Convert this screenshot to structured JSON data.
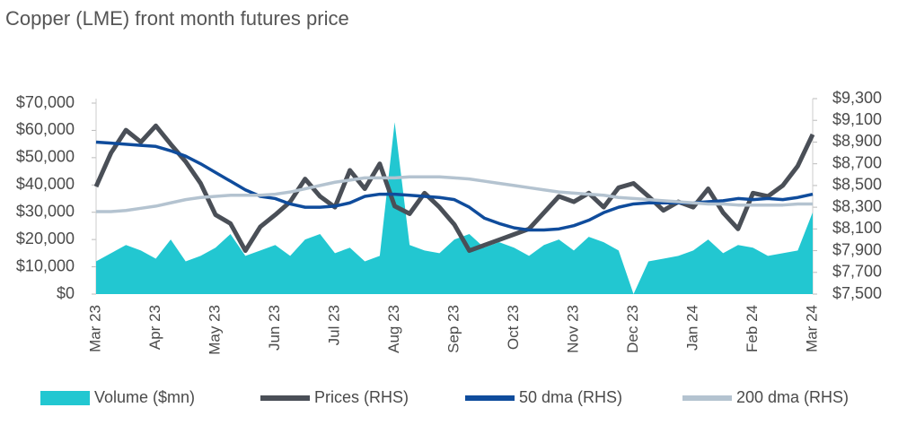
{
  "chart_data": {
    "type": "line",
    "title": "Copper (LME) front month futures price",
    "categories": [
      "Mar 23",
      null,
      null,
      null,
      "Apr 23",
      null,
      null,
      null,
      "May 23",
      null,
      null,
      null,
      "Jun 23",
      null,
      null,
      null,
      "Jul 23",
      null,
      null,
      null,
      "Aug 23",
      null,
      null,
      null,
      "Sep 23",
      null,
      null,
      null,
      "Oct 23",
      null,
      null,
      null,
      "Nov 23",
      null,
      null,
      null,
      "Dec 23",
      null,
      null,
      null,
      "Jan 24",
      null,
      null,
      null,
      "Feb 24",
      null,
      null,
      null,
      "Mar 24"
    ],
    "series": [
      {
        "name": "Volume ($mn)",
        "type": "area",
        "axis": "y",
        "color": "#22c7d1",
        "values": [
          12000,
          15000,
          18000,
          16000,
          13000,
          20000,
          12000,
          14000,
          17000,
          22000,
          14000,
          16000,
          18000,
          14000,
          20000,
          22000,
          15000,
          17000,
          12000,
          14000,
          63000,
          18000,
          16000,
          15000,
          20000,
          22000,
          17000,
          19000,
          17000,
          14000,
          18000,
          20000,
          16000,
          21000,
          19000,
          16000,
          0,
          12000,
          13000,
          14000,
          16000,
          20000,
          15000,
          18000,
          17000,
          14000,
          15000,
          16000,
          30000
        ]
      },
      {
        "name": "Prices (RHS)",
        "type": "line",
        "axis": "y2",
        "color": "#4a4f57",
        "values": [
          8490,
          8800,
          9010,
          8900,
          9050,
          8880,
          8720,
          8520,
          8230,
          8150,
          7900,
          8120,
          8230,
          8350,
          8560,
          8400,
          8300,
          8640,
          8470,
          8700,
          8310,
          8240,
          8430,
          8300,
          8140,
          7900,
          7950,
          8000,
          8050,
          8100,
          8250,
          8400,
          8350,
          8430,
          8300,
          8480,
          8520,
          8400,
          8270,
          8350,
          8300,
          8470,
          8250,
          8100,
          8430,
          8400,
          8500,
          8680,
          8970
        ]
      },
      {
        "name": "50 dma (RHS)",
        "type": "line",
        "axis": "y2",
        "color": "#0f4c9c",
        "values": [
          8900,
          8890,
          8880,
          8870,
          8860,
          8820,
          8770,
          8700,
          8620,
          8540,
          8460,
          8400,
          8380,
          8330,
          8300,
          8300,
          8310,
          8340,
          8400,
          8420,
          8420,
          8410,
          8400,
          8390,
          8370,
          8300,
          8200,
          8150,
          8110,
          8090,
          8090,
          8100,
          8130,
          8180,
          8250,
          8300,
          8330,
          8340,
          8340,
          8340,
          8340,
          8350,
          8360,
          8380,
          8370,
          8380,
          8370,
          8390,
          8420
        ]
      },
      {
        "name": "200 dma (RHS)",
        "type": "line",
        "axis": "y2",
        "color": "#b4c3d0",
        "values": [
          8260,
          8260,
          8270,
          8290,
          8310,
          8340,
          8370,
          8390,
          8400,
          8410,
          8410,
          8410,
          8420,
          8440,
          8470,
          8500,
          8530,
          8550,
          8570,
          8570,
          8570,
          8580,
          8580,
          8580,
          8570,
          8560,
          8540,
          8520,
          8500,
          8480,
          8460,
          8440,
          8430,
          8420,
          8410,
          8390,
          8380,
          8370,
          8360,
          8350,
          8340,
          8330,
          8330,
          8320,
          8320,
          8320,
          8320,
          8330,
          8330
        ]
      }
    ],
    "ylim": [
      0,
      70000
    ],
    "yticks": [
      {
        "value": 0,
        "label": "$0"
      },
      {
        "value": 10000,
        "label": "$10,000"
      },
      {
        "value": 20000,
        "label": "$20,000"
      },
      {
        "value": 30000,
        "label": "$30,000"
      },
      {
        "value": 40000,
        "label": "$40,000"
      },
      {
        "value": 50000,
        "label": "$50,000"
      },
      {
        "value": 60000,
        "label": "$60,000"
      },
      {
        "value": 70000,
        "label": "$70,000"
      }
    ],
    "y2lim": [
      7500,
      9300
    ],
    "y2ticks": [
      {
        "value": 7500,
        "label": "$7,500"
      },
      {
        "value": 7700,
        "label": "$7,700"
      },
      {
        "value": 7900,
        "label": "$7,900"
      },
      {
        "value": 8100,
        "label": "$8,100"
      },
      {
        "value": 8300,
        "label": "$8,300"
      },
      {
        "value": 8500,
        "label": "$8,500"
      },
      {
        "value": 8700,
        "label": "$8,700"
      },
      {
        "value": 8900,
        "label": "$8,900"
      },
      {
        "value": 9100,
        "label": "$9,100"
      },
      {
        "value": 9300,
        "label": "$9,300"
      }
    ],
    "legend": "bottom"
  }
}
